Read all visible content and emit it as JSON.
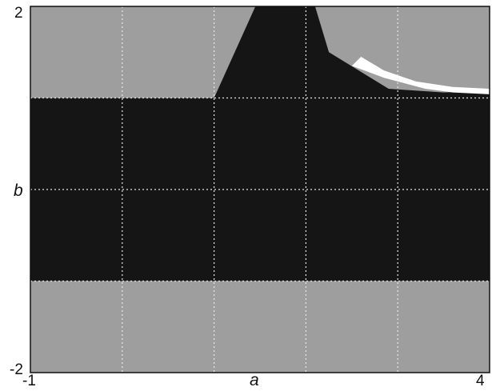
{
  "chart_data": {
    "type": "heatmap",
    "title": "",
    "xlabel": "a",
    "ylabel": "b",
    "xlim": [
      -1,
      4
    ],
    "ylim": [
      -2,
      2
    ],
    "x_tick_labels": [
      "-1",
      "4"
    ],
    "y_tick_labels": [
      "2",
      "-2"
    ],
    "grid": true,
    "grid_x": [
      0,
      1,
      2,
      3
    ],
    "grid_y": [
      -1,
      0,
      1
    ],
    "regions": [
      {
        "name": "light-gray-bottom",
        "color": "#9e9e9e",
        "x_range": [
          -1,
          4
        ],
        "y_range": [
          -2,
          -1
        ]
      },
      {
        "name": "black-band",
        "color": "#151515",
        "x_range": [
          -1,
          4
        ],
        "y_range": [
          -1,
          1
        ]
      },
      {
        "name": "light-gray-top",
        "color": "#9e9e9e",
        "x_range": [
          -1,
          4
        ],
        "y_range": [
          1,
          2
        ]
      },
      {
        "name": "black-upper-wedge",
        "color": "#151515",
        "polygon": [
          [
            1,
            1
          ],
          [
            1.45,
            2
          ],
          [
            2.1,
            2
          ],
          [
            2.25,
            1.5
          ],
          [
            2.9,
            1.1
          ],
          [
            3.5,
            1.06
          ],
          [
            4,
            1.08
          ],
          [
            4,
            1
          ]
        ]
      },
      {
        "name": "white-speckle-region",
        "color": "#ffffff",
        "polygon": [
          [
            2.5,
            1.35
          ],
          [
            2.85,
            1.22
          ],
          [
            3.3,
            1.1
          ],
          [
            3.6,
            1.06
          ],
          [
            4,
            1.04
          ],
          [
            4,
            1.1
          ],
          [
            3.6,
            1.12
          ],
          [
            3.2,
            1.18
          ],
          [
            2.85,
            1.3
          ],
          [
            2.6,
            1.45
          ]
        ]
      }
    ]
  }
}
